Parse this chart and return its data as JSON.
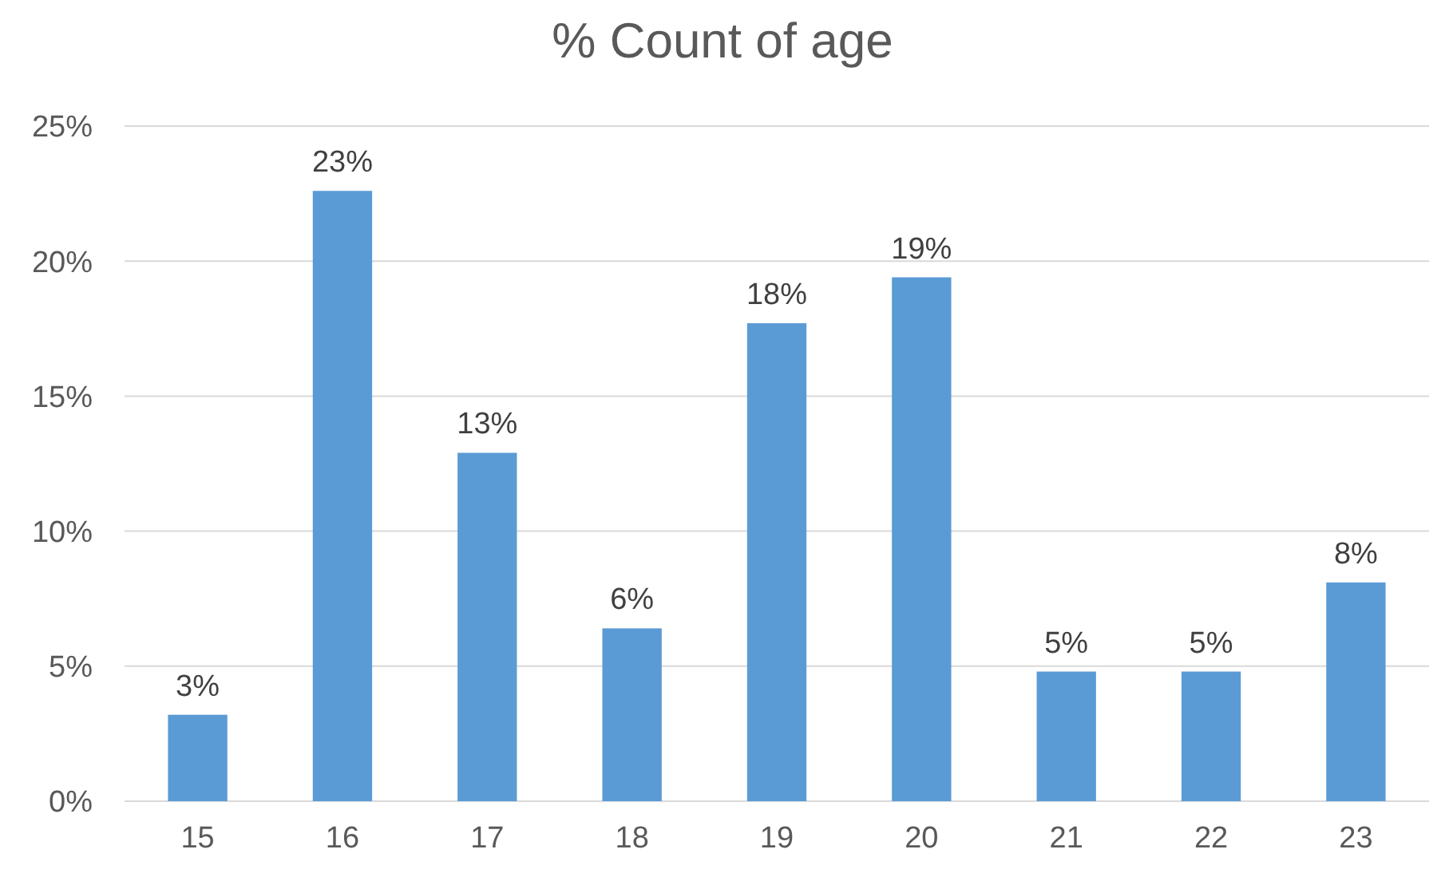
{
  "chart_data": {
    "type": "bar",
    "title": "% Count of age",
    "categories": [
      "15",
      "16",
      "17",
      "18",
      "19",
      "20",
      "21",
      "22",
      "23"
    ],
    "values": [
      3.2,
      22.6,
      12.9,
      6.4,
      17.7,
      19.4,
      4.8,
      4.8,
      8.1
    ],
    "value_labels": [
      "3%",
      "23%",
      "13%",
      "6%",
      "18%",
      "19%",
      "5%",
      "5%",
      "8%"
    ],
    "color": "#5b9bd5",
    "ylim": [
      0,
      25
    ],
    "yticks": [
      {
        "value": 0,
        "label": "0%"
      },
      {
        "value": 5,
        "label": "5%"
      },
      {
        "value": 10,
        "label": "10%"
      },
      {
        "value": 15,
        "label": "15%"
      },
      {
        "value": 20,
        "label": "20%"
      },
      {
        "value": 25,
        "label": "25%"
      }
    ],
    "grid": "y"
  }
}
